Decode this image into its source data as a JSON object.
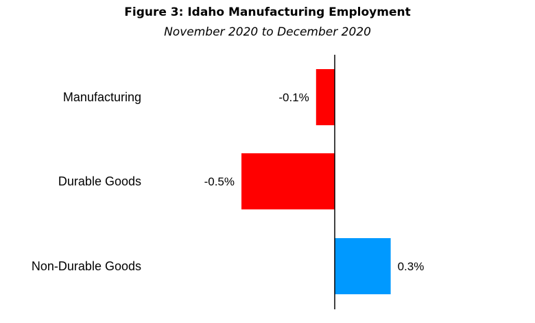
{
  "chart_data": {
    "type": "bar",
    "orientation": "horizontal",
    "title": "Figure 3: Idaho Manufacturing Employment",
    "subtitle": "November 2020 to December 2020",
    "categories": [
      "Manufacturing",
      "Durable Goods",
      "Non-Durable Goods"
    ],
    "values": [
      -0.1,
      -0.5,
      0.3
    ],
    "data_labels": [
      "-0.1%",
      "-0.5%",
      "0.3%"
    ],
    "colors": [
      "#ff0000",
      "#ff0000",
      "#0099ff"
    ],
    "xlim": [
      -0.5,
      0.3
    ],
    "grid": false,
    "legend": "none"
  }
}
